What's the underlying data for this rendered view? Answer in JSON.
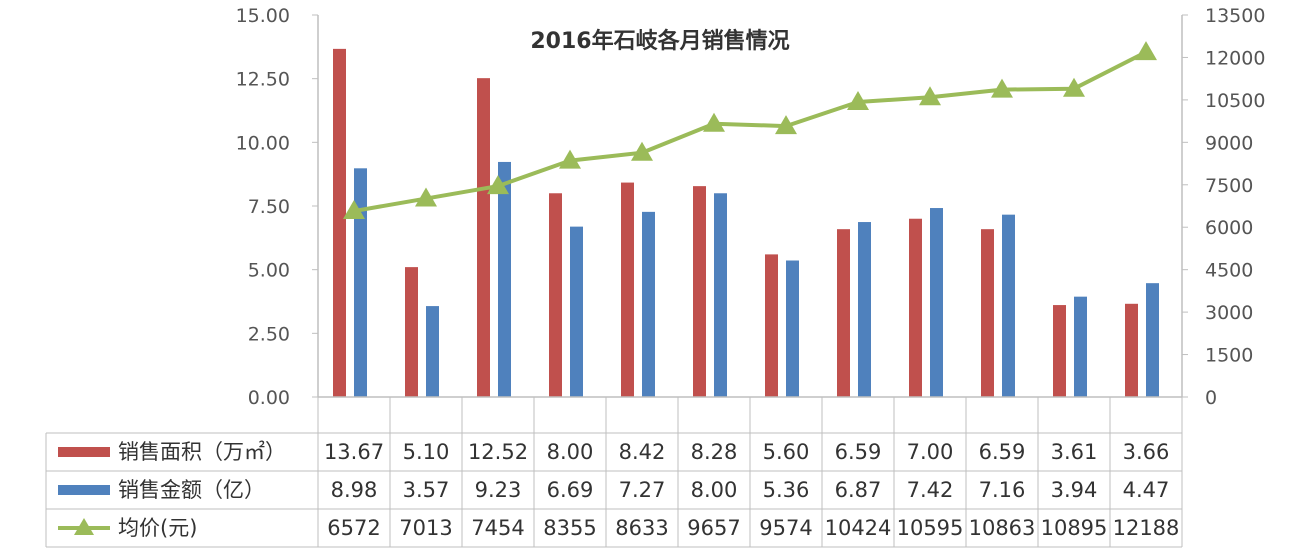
{
  "chart_data": {
    "type": "bar",
    "title": "2016年石岐各月销售情况",
    "categories": [
      "",
      "",
      "",
      "",
      "",
      "",
      "",
      "",
      "",
      "",
      "",
      ""
    ],
    "y_left": {
      "ticks": [
        "0.00",
        "2.50",
        "5.00",
        "7.50",
        "10.00",
        "12.50",
        "15.00"
      ],
      "ylim": [
        0,
        15
      ]
    },
    "y_right": {
      "ticks": [
        "0",
        "1500",
        "3000",
        "4500",
        "6000",
        "7500",
        "9000",
        "10500",
        "12000",
        "13500"
      ],
      "ylim": [
        0,
        13500
      ]
    },
    "grid": false,
    "legend": "table-bottom",
    "series": [
      {
        "name": "销售面积（万㎡）",
        "type": "bar",
        "axis": "left",
        "color": "#c0504d",
        "values": [
          13.67,
          5.1,
          12.52,
          8.0,
          8.42,
          8.28,
          5.6,
          6.59,
          7.0,
          6.59,
          3.61,
          3.66
        ],
        "labels": [
          "13.67",
          "5.10",
          "12.52",
          "8.00",
          "8.42",
          "8.28",
          "5.60",
          "6.59",
          "7.00",
          "6.59",
          "3.61",
          "3.66"
        ]
      },
      {
        "name": "销售金额（亿）",
        "type": "bar",
        "axis": "left",
        "color": "#4f81bd",
        "values": [
          8.98,
          3.57,
          9.23,
          6.69,
          7.27,
          8.0,
          5.36,
          6.87,
          7.42,
          7.16,
          3.94,
          4.47
        ],
        "labels": [
          "8.98",
          "3.57",
          "9.23",
          "6.69",
          "7.27",
          "8.00",
          "5.36",
          "6.87",
          "7.42",
          "7.16",
          "3.94",
          "4.47"
        ]
      },
      {
        "name": "均价(元)",
        "type": "line",
        "axis": "right",
        "color": "#9bbb59",
        "values": [
          6572,
          7013,
          7454,
          8355,
          8633,
          9657,
          9574,
          10424,
          10595,
          10863,
          10895,
          12188
        ],
        "labels": [
          "6572",
          "7013",
          "7454",
          "8355",
          "8633",
          "9657",
          "9574",
          "10424",
          "10595",
          "10863",
          "10895",
          "12188"
        ]
      }
    ]
  }
}
